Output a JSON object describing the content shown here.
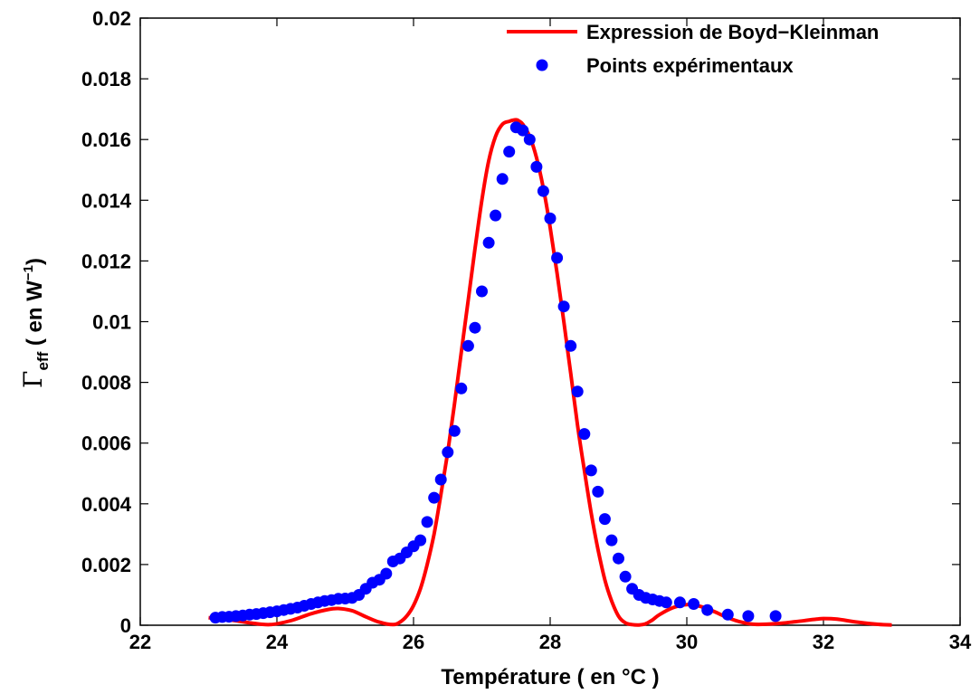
{
  "chart_data": {
    "type": "line",
    "xlabel": "Température ( en °C )",
    "ylabel": {
      "gamma": "Γ",
      "sub": "eff",
      "main": " ( en W",
      "sup": "−1",
      "end": ")"
    },
    "xlim": [
      22,
      34
    ],
    "ylim": [
      0,
      0.02
    ],
    "xticks": [
      "22",
      "24",
      "26",
      "28",
      "30",
      "32",
      "34"
    ],
    "yticks": [
      "0",
      "0.002",
      "0.004",
      "0.006",
      "0.008",
      "0.01",
      "0.012",
      "0.014",
      "0.016",
      "0.018",
      "0.02"
    ],
    "legend_position": "top-right",
    "series": [
      {
        "name": "Expression de Boyd−Kleinman",
        "style": "line",
        "color": "#ff0000",
        "x": [
          23.0,
          23.3,
          23.6,
          23.9,
          24.2,
          24.5,
          24.75,
          24.9,
          25.1,
          25.3,
          25.5,
          25.7,
          25.8,
          25.9,
          26.0,
          26.1,
          26.2,
          26.3,
          26.4,
          26.5,
          26.6,
          26.7,
          26.8,
          26.9,
          27.0,
          27.1,
          27.2,
          27.3,
          27.4,
          27.5,
          27.55,
          27.6,
          27.7,
          27.8,
          27.9,
          28.0,
          28.1,
          28.2,
          28.3,
          28.4,
          28.5,
          28.6,
          28.7,
          28.8,
          28.9,
          29.0,
          29.1,
          29.2,
          29.3,
          29.4,
          29.5,
          29.6,
          29.8,
          30.0,
          30.2,
          30.4,
          30.6,
          30.8,
          31.0,
          31.3,
          31.6,
          31.9,
          32.0,
          32.2,
          32.5,
          32.8,
          33.0
        ],
        "y": [
          0.00025,
          0.00018,
          8e-05,
          2e-05,
          0.00015,
          0.00038,
          0.00052,
          0.00055,
          0.00048,
          0.00028,
          0.0001,
          2e-05,
          0.0001,
          0.0003,
          0.00065,
          0.0012,
          0.002,
          0.003,
          0.0043,
          0.0057,
          0.0073,
          0.009,
          0.0107,
          0.0124,
          0.014,
          0.0153,
          0.0161,
          0.0165,
          0.0166,
          0.01665,
          0.0166,
          0.0165,
          0.0161,
          0.0154,
          0.0144,
          0.0131,
          0.0116,
          0.01,
          0.0083,
          0.0066,
          0.0051,
          0.0037,
          0.0025,
          0.0015,
          0.0008,
          0.0003,
          8e-05,
          2e-05,
          1e-05,
          5e-05,
          0.00018,
          0.00035,
          0.00058,
          0.00068,
          0.00062,
          0.00045,
          0.00025,
          0.0001,
          3e-05,
          5e-05,
          0.00012,
          0.0002,
          0.00022,
          0.0002,
          0.0001,
          3e-05,
          1e-05
        ]
      },
      {
        "name": "Points expérimentaux",
        "style": "markers",
        "color": "#0000ff",
        "x": [
          23.1,
          23.2,
          23.3,
          23.4,
          23.5,
          23.6,
          23.7,
          23.8,
          23.9,
          24.0,
          24.1,
          24.2,
          24.3,
          24.4,
          24.5,
          24.6,
          24.7,
          24.8,
          24.9,
          25.0,
          25.1,
          25.2,
          25.3,
          25.4,
          25.5,
          25.6,
          25.7,
          25.8,
          25.9,
          26.0,
          26.1,
          26.2,
          26.3,
          26.4,
          26.5,
          26.6,
          26.7,
          26.8,
          26.9,
          27.0,
          27.1,
          27.2,
          27.3,
          27.4,
          27.5,
          27.6,
          27.7,
          27.8,
          27.9,
          28.0,
          28.1,
          28.2,
          28.3,
          28.4,
          28.5,
          28.6,
          28.7,
          28.8,
          28.9,
          29.0,
          29.1,
          29.2,
          29.3,
          29.4,
          29.5,
          29.6,
          29.7,
          29.9,
          30.1,
          30.3,
          30.6,
          30.9,
          31.3
        ],
        "y": [
          0.00025,
          0.00027,
          0.00028,
          0.0003,
          0.00032,
          0.00035,
          0.00037,
          0.0004,
          0.00043,
          0.00046,
          0.0005,
          0.00054,
          0.00058,
          0.00064,
          0.0007,
          0.00075,
          0.0008,
          0.00083,
          0.00087,
          0.00088,
          0.0009,
          0.001,
          0.0012,
          0.0014,
          0.0015,
          0.0017,
          0.0021,
          0.0022,
          0.0024,
          0.0026,
          0.0028,
          0.0034,
          0.0042,
          0.0048,
          0.0057,
          0.0064,
          0.0078,
          0.0092,
          0.0098,
          0.011,
          0.0126,
          0.0135,
          0.0147,
          0.0156,
          0.0164,
          0.0163,
          0.016,
          0.0151,
          0.0143,
          0.0134,
          0.0121,
          0.0105,
          0.0092,
          0.0077,
          0.0063,
          0.0051,
          0.0044,
          0.0035,
          0.0028,
          0.0022,
          0.0016,
          0.0012,
          0.001,
          0.0009,
          0.00085,
          0.0008,
          0.00075,
          0.00075,
          0.0007,
          0.0005,
          0.00035,
          0.0003,
          0.0003
        ]
      }
    ]
  }
}
